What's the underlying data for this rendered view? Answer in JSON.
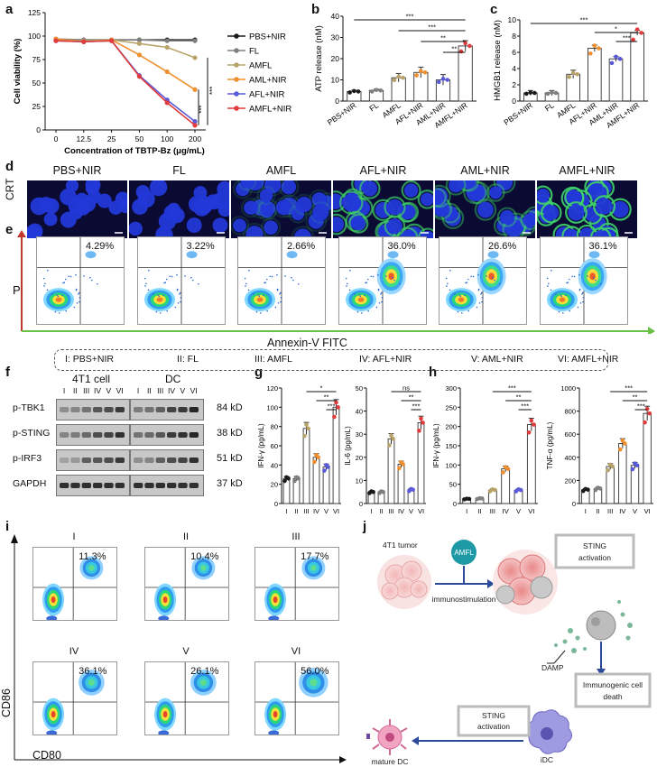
{
  "panels": {
    "a": "a",
    "b": "b",
    "c": "c",
    "d": "d",
    "e": "e",
    "f": "f",
    "g": "g",
    "h": "h",
    "i": "i",
    "j": "j"
  },
  "groups_full": [
    "PBS+NIR",
    "FL",
    "AMFL",
    "AML+NIR",
    "AFL+NIR",
    "AMFL+NIR"
  ],
  "group_colors": [
    "#1a1a1a",
    "#7f7f7f",
    "#b8a46a",
    "#f08f2e",
    "#5a5ad8",
    "#e23b3b"
  ],
  "panel_a": {
    "chart_data": {
      "type": "line",
      "xlabel": "Concentration of TBTP-Bz  (μg/mL)",
      "ylabel": "Cell viability (%)",
      "x_ticks": [
        "0",
        "12.5",
        "25",
        "50",
        "100",
        "200"
      ],
      "y_ticks": [
        "0",
        "25",
        "50",
        "75",
        "100",
        "125"
      ],
      "ylim": [
        0,
        125
      ],
      "series": [
        {
          "name": "PBS+NIR",
          "values": [
            96,
            96,
            96,
            96,
            96,
            96
          ]
        },
        {
          "name": "FL",
          "values": [
            97,
            96,
            96,
            96,
            95,
            95
          ]
        },
        {
          "name": "AMFL",
          "values": [
            96,
            95,
            96,
            92,
            88,
            77
          ]
        },
        {
          "name": "AML+NIR",
          "values": [
            97,
            94,
            96,
            80,
            62,
            43
          ]
        },
        {
          "name": "AFL+NIR",
          "values": [
            95,
            94,
            95,
            58,
            32,
            9
          ]
        },
        {
          "name": "AMFL+NIR",
          "values": [
            95,
            94,
            95,
            57,
            29,
            5
          ]
        }
      ],
      "significance": [
        "***",
        "***"
      ]
    }
  },
  "panel_b": {
    "chart_data": {
      "type": "bar",
      "ylabel": "ATP release (nM)",
      "y_ticks": [
        "0",
        "10",
        "20",
        "30",
        "40"
      ],
      "ylim": [
        0,
        40
      ],
      "categories": [
        "PBS+NIR",
        "FL",
        "AMFL",
        "AFL+NIR",
        "AML+NIR",
        "AMFL+NIR"
      ],
      "values": [
        4.5,
        5,
        11,
        13.5,
        10,
        26
      ],
      "errors": [
        0.6,
        0.6,
        2,
        2.5,
        2.5,
        2.5
      ],
      "significance": [
        "***",
        "***",
        "**",
        "**"
      ]
    }
  },
  "panel_c": {
    "chart_data": {
      "type": "bar",
      "ylabel": "HMGB1 release (nM)",
      "y_ticks": [
        "0",
        "2",
        "4",
        "6",
        "8",
        "10"
      ],
      "ylim": [
        0,
        10
      ],
      "categories": [
        "PBS+NIR",
        "FL",
        "AMFL",
        "AFL+NIR",
        "AML+NIR",
        "AMFL+NIR"
      ],
      "values": [
        1,
        1,
        3.3,
        6.5,
        5.2,
        8.4
      ],
      "errors": [
        0.3,
        0.3,
        0.5,
        0.4,
        0.3,
        0.3
      ],
      "significance": [
        "***",
        "*",
        "***"
      ]
    }
  },
  "panel_d": {
    "row_label": "CRT",
    "labels": [
      "PBS+NIR",
      "FL",
      "AMFL",
      "AFL+NIR",
      "AML+NIR",
      "AMFL+NIR"
    ],
    "crt_level": [
      0.05,
      0.05,
      0.15,
      0.7,
      0.45,
      0.9
    ]
  },
  "panel_e": {
    "percentages": [
      "4.29%",
      "3.22%",
      "2.66%",
      "36.0%",
      "26.6%",
      "36.1%"
    ],
    "y_axis": "PI",
    "x_axis": "Annexin-V FITC"
  },
  "legend_groups": [
    "I: PBS+NIR",
    "II: FL",
    "III: AMFL",
    "IV: AFL+NIR",
    "V: AML+NIR",
    "VI: AMFL+NIR"
  ],
  "panel_f": {
    "titles": [
      "4T1 cell",
      "DC"
    ],
    "lanes": [
      "I",
      "II",
      "III",
      "IV",
      "V",
      "VI"
    ],
    "proteins": [
      "p-TBK1",
      "p-STING",
      "p-IRF3",
      "GAPDH"
    ],
    "sizes": [
      "84 kD",
      "38 kD",
      "51 kD",
      "37 kD"
    ]
  },
  "panel_g": {
    "charts": [
      {
        "type": "bar",
        "ylabel": "IFN-γ (pg/mL)",
        "y_ticks": [
          "0",
          "20",
          "40",
          "60",
          "80",
          "100",
          "120"
        ],
        "ylim": [
          0,
          120
        ],
        "categories": [
          "I",
          "II",
          "III",
          "IV",
          "V",
          "VI"
        ],
        "values": [
          26,
          26,
          78,
          48,
          38,
          100
        ],
        "significance": [
          "*",
          "**",
          "***"
        ]
      },
      {
        "type": "bar",
        "ylabel": "IL-6 (pg/mL)",
        "y_ticks": [
          "0",
          "10",
          "20",
          "30",
          "40",
          "50"
        ],
        "ylim": [
          0,
          50
        ],
        "categories": [
          "I",
          "II",
          "III",
          "IV",
          "V",
          "VI"
        ],
        "values": [
          5,
          5,
          28,
          17,
          6,
          35
        ],
        "significance": [
          "ns",
          "**",
          "***"
        ]
      }
    ]
  },
  "panel_h": {
    "charts": [
      {
        "type": "bar",
        "ylabel": "IFN-γ (pg/mL)",
        "y_ticks": [
          "0",
          "50",
          "100",
          "150",
          "200",
          "250",
          "300"
        ],
        "ylim": [
          0,
          300
        ],
        "categories": [
          "I",
          "II",
          "III",
          "IV",
          "V",
          "VI"
        ],
        "values": [
          12,
          13,
          35,
          90,
          35,
          205
        ],
        "significance": [
          "***",
          "**",
          "***"
        ]
      },
      {
        "type": "bar",
        "ylabel": "TNF-α (pg/mL)",
        "y_ticks": [
          "0",
          "200",
          "400",
          "600",
          "800",
          "1000"
        ],
        "ylim": [
          0,
          1000
        ],
        "categories": [
          "I",
          "II",
          "III",
          "IV",
          "V",
          "VI"
        ],
        "values": [
          120,
          130,
          320,
          520,
          330,
          780
        ],
        "significance": [
          "***",
          "**",
          "***"
        ]
      }
    ]
  },
  "panel_i": {
    "labels": [
      "I",
      "II",
      "III",
      "IV",
      "V",
      "VI"
    ],
    "percentages": [
      "11.3%",
      "10.4%",
      "17.7%",
      "36.1%",
      "26.1%",
      "56.0%"
    ],
    "y_axis": "CD86",
    "x_axis": "CD80"
  },
  "panel_j": {
    "tumor": "4T1 tumor",
    "agent": "AMFL",
    "immuno": "immunostimulation",
    "sting1": "STING activation",
    "damp": "DAMP",
    "icd": "Immunogenic cell death",
    "idc": "iDC",
    "sting2": "STING activation",
    "mature": "mature DC"
  }
}
